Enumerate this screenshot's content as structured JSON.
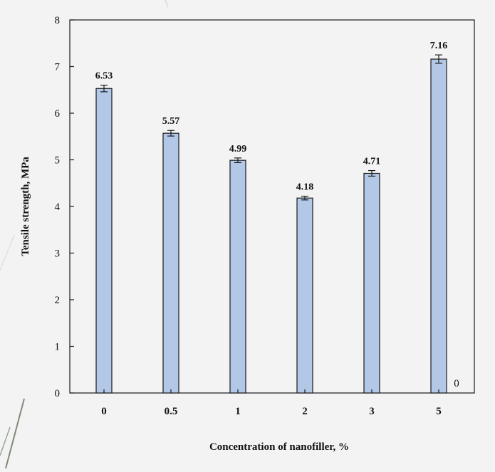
{
  "chart_data": {
    "type": "bar",
    "categories": [
      "0",
      "0.5",
      "1",
      "2",
      "3",
      "5"
    ],
    "values": [
      6.53,
      5.57,
      4.99,
      4.18,
      4.71,
      7.16
    ],
    "error": [
      0.07,
      0.06,
      0.05,
      0.04,
      0.06,
      0.09
    ],
    "data_labels": [
      "6.53",
      "5.57",
      "4.99",
      "4.18",
      "4.71",
      "7.16"
    ],
    "title": "",
    "xlabel": "Concentration of nanofiller, %",
    "ylabel": "Tensile strength, MPa",
    "ylim": [
      0,
      8
    ],
    "yticks": [
      "0",
      "1",
      "2",
      "3",
      "4",
      "5",
      "6",
      "7",
      "8"
    ],
    "grid": false,
    "legend": "none",
    "bar_color": "#b3c7e6",
    "bar_edge_color": "#1a1a1a",
    "corner_annotation": "0"
  }
}
